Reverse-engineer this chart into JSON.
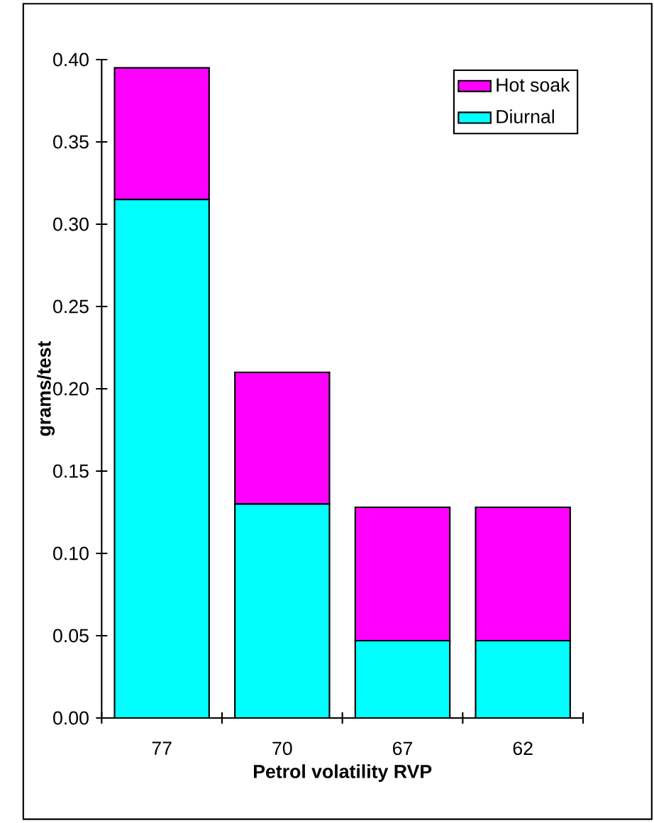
{
  "chart_data": {
    "type": "bar",
    "stacked": true,
    "xlabel": "Petrol volatility RVP",
    "ylabel": "grams/test",
    "categories": [
      "77",
      "70",
      "67",
      "62"
    ],
    "series": [
      {
        "name": "Diurnal",
        "color": "#00ffff",
        "values": [
          0.315,
          0.13,
          0.047,
          0.047
        ]
      },
      {
        "name": "Hot soak",
        "color": "#ff00ff",
        "values": [
          0.08,
          0.08,
          0.081,
          0.081
        ]
      }
    ],
    "ylim": [
      0,
      0.4
    ],
    "yticks": [
      {
        "value": 0,
        "label": "0.00"
      },
      {
        "value": 0.05,
        "label": "0.05"
      },
      {
        "value": 0.1,
        "label": "0.10"
      },
      {
        "value": 0.15,
        "label": "0.15"
      },
      {
        "value": 0.2,
        "label": "0.20"
      },
      {
        "value": 0.25,
        "label": "0.25"
      },
      {
        "value": 0.3,
        "label": "0.30"
      },
      {
        "value": 0.35,
        "label": "0.35"
      },
      {
        "value": 0.4,
        "label": "0.40"
      }
    ],
    "grid": false,
    "legend": "top right"
  }
}
